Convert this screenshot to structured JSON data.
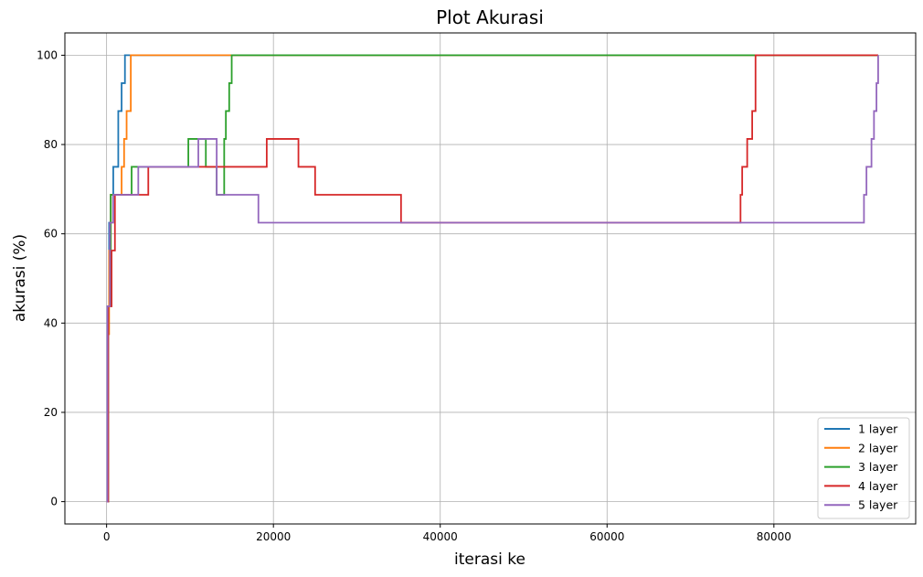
{
  "chart_data": {
    "type": "line",
    "title": "Plot Akurasi",
    "xlabel": "iterasi ke",
    "ylabel": "akurasi (%)",
    "xlim": [
      -5000,
      97000
    ],
    "ylim": [
      -5,
      105
    ],
    "xticks": [
      0,
      20000,
      40000,
      60000,
      80000
    ],
    "yticks": [
      0,
      20,
      40,
      60,
      80,
      100
    ],
    "grid": true,
    "legend_position": "lower-right",
    "series": [
      {
        "name": "1 layer",
        "color": "#1f77b4",
        "points": [
          [
            0,
            0
          ],
          [
            100,
            43.75
          ],
          [
            300,
            62.5
          ],
          [
            500,
            68.75
          ],
          [
            800,
            75
          ],
          [
            1400,
            87.5
          ],
          [
            1800,
            93.75
          ],
          [
            2200,
            100
          ],
          [
            92500,
            100
          ]
        ]
      },
      {
        "name": "2 layer",
        "color": "#ff7f0e",
        "points": [
          [
            0,
            0
          ],
          [
            150,
            37.5
          ],
          [
            300,
            56.25
          ],
          [
            500,
            68.75
          ],
          [
            1800,
            75
          ],
          [
            2100,
            81.25
          ],
          [
            2400,
            87.5
          ],
          [
            2900,
            100
          ],
          [
            92500,
            100
          ]
        ]
      },
      {
        "name": "3 layer",
        "color": "#2ca02c",
        "points": [
          [
            0,
            0
          ],
          [
            200,
            43.75
          ],
          [
            500,
            68.75
          ],
          [
            3000,
            75
          ],
          [
            9800,
            81.25
          ],
          [
            11900,
            75
          ],
          [
            13200,
            68.75
          ],
          [
            14100,
            81.25
          ],
          [
            14300,
            87.5
          ],
          [
            14700,
            93.75
          ],
          [
            15000,
            100
          ],
          [
            92500,
            100
          ]
        ]
      },
      {
        "name": "4 layer",
        "color": "#d62728",
        "points": [
          [
            0,
            0
          ],
          [
            200,
            43.75
          ],
          [
            600,
            56.25
          ],
          [
            1000,
            68.75
          ],
          [
            5000,
            75
          ],
          [
            19200,
            81.25
          ],
          [
            23000,
            75
          ],
          [
            25000,
            68.75
          ],
          [
            35300,
            62.5
          ],
          [
            76000,
            68.75
          ],
          [
            76200,
            75
          ],
          [
            76800,
            81.25
          ],
          [
            77400,
            87.5
          ],
          [
            77800,
            100
          ],
          [
            92500,
            100
          ]
        ]
      },
      {
        "name": "5 layer",
        "color": "#9467bd",
        "points": [
          [
            0,
            0
          ],
          [
            100,
            43.75
          ],
          [
            400,
            62.5
          ],
          [
            800,
            68.75
          ],
          [
            3800,
            75
          ],
          [
            11000,
            81.25
          ],
          [
            13200,
            68.75
          ],
          [
            18200,
            62.5
          ],
          [
            90800,
            68.75
          ],
          [
            91100,
            75
          ],
          [
            91700,
            81.25
          ],
          [
            92000,
            87.5
          ],
          [
            92300,
            93.75
          ],
          [
            92500,
            100
          ]
        ]
      }
    ]
  }
}
